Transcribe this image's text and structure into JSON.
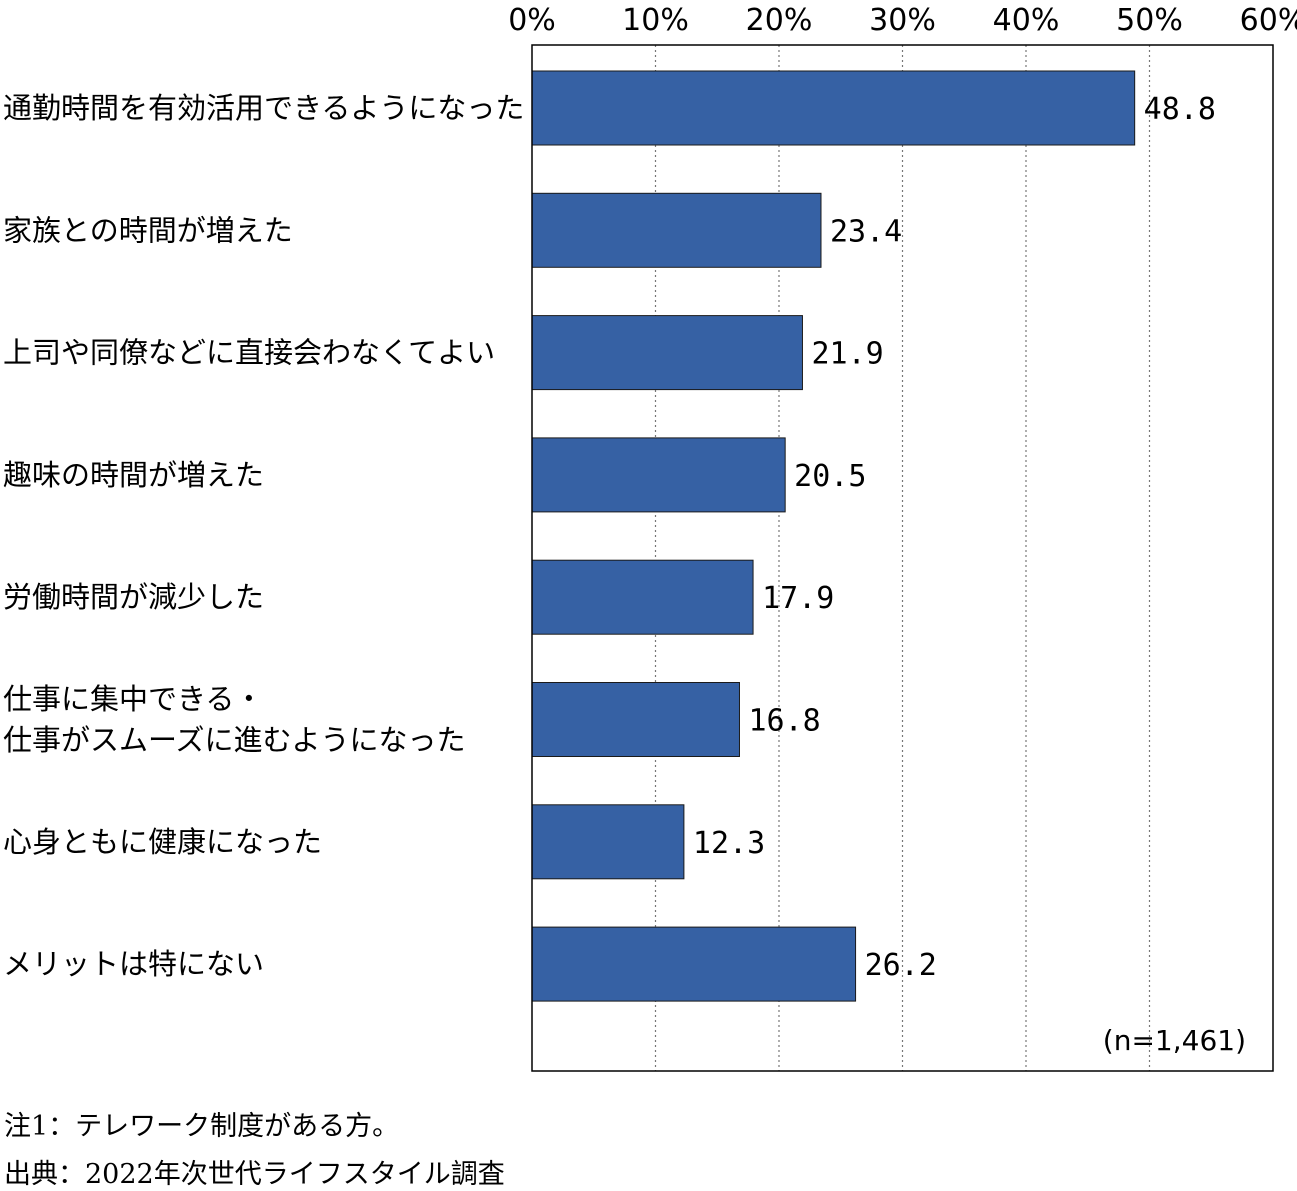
{
  "chart_data": {
    "type": "bar",
    "orientation": "horizontal",
    "categories": [
      [
        "通勤時間を有効活用できるようになった"
      ],
      [
        "家族との時間が増えた"
      ],
      [
        "上司や同僚などに直接会わなくてよい"
      ],
      [
        "趣味の時間が増えた"
      ],
      [
        "労働時間が減少した"
      ],
      [
        "仕事に集中できる・",
        "仕事がスムーズに進むようになった"
      ],
      [
        "心身ともに健康になった"
      ],
      [
        "メリットは特にない"
      ]
    ],
    "values": [
      48.8,
      23.4,
      21.9,
      20.5,
      17.9,
      16.8,
      12.3,
      26.2
    ],
    "value_labels": [
      "48.8",
      "23.4",
      "21.9",
      "20.5",
      "17.9",
      "16.8",
      "12.3",
      "26.2"
    ],
    "xlim": [
      0,
      60
    ],
    "xticks": [
      0,
      10,
      20,
      30,
      40,
      50,
      60
    ],
    "xtick_labels": [
      "0%",
      "10%",
      "20%",
      "30%",
      "40%",
      "50%",
      "60%"
    ],
    "x_axis_position": "top",
    "grid": "vertical dotted",
    "bar_color": "#3661A4",
    "sample_label": "(n=1,461)"
  },
  "notes": {
    "note1": "注1：テレワーク制度がある方。",
    "source": "出典：2022年次世代ライフスタイル調査"
  }
}
